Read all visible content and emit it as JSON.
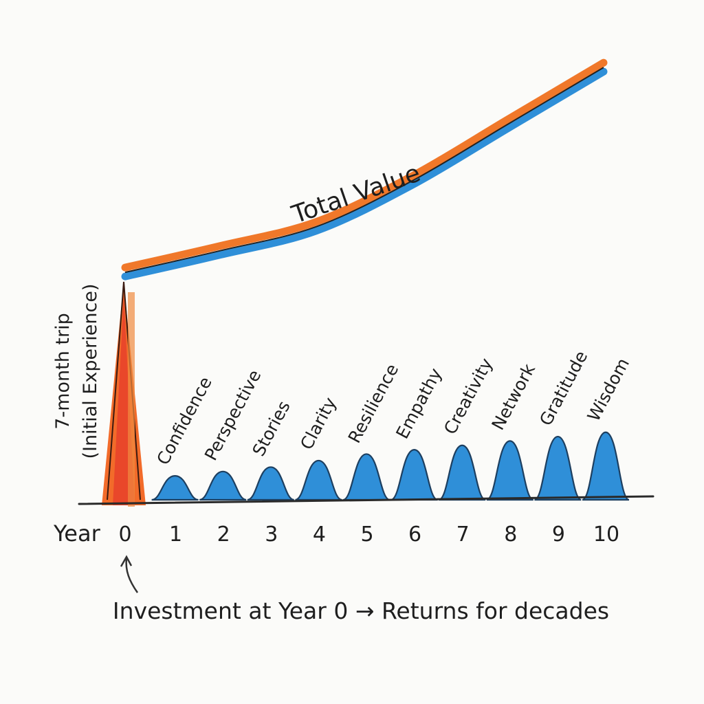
{
  "chart_data": {
    "type": "bar",
    "xlabel": "Year",
    "x": [
      0,
      1,
      2,
      3,
      4,
      5,
      6,
      7,
      8,
      9,
      10
    ],
    "initial": {
      "year": 0,
      "label_line1": "7-month trip",
      "label_line2": "(Initial Experience)",
      "value": 100,
      "color": "#f26b2a"
    },
    "returns": {
      "categories": [
        "Confidence",
        "Perspective",
        "Stories",
        "Clarity",
        "Resilience",
        "Empathy",
        "Creativity",
        "Network",
        "Gratitude",
        "Wisdom"
      ],
      "values": [
        11,
        13,
        15,
        18,
        21,
        23,
        25,
        27,
        29,
        31
      ],
      "color": "#2f8fd8"
    },
    "total_value": {
      "label": "Total Value",
      "years": [
        0,
        2,
        4,
        6,
        8,
        10
      ],
      "values": [
        105,
        115,
        126,
        147,
        173,
        199
      ],
      "colors": [
        "#f0782a",
        "#2f8fd8"
      ]
    },
    "footer": "Investment at Year 0 → Returns for decades",
    "grid": false,
    "y_axis_labels": false
  }
}
